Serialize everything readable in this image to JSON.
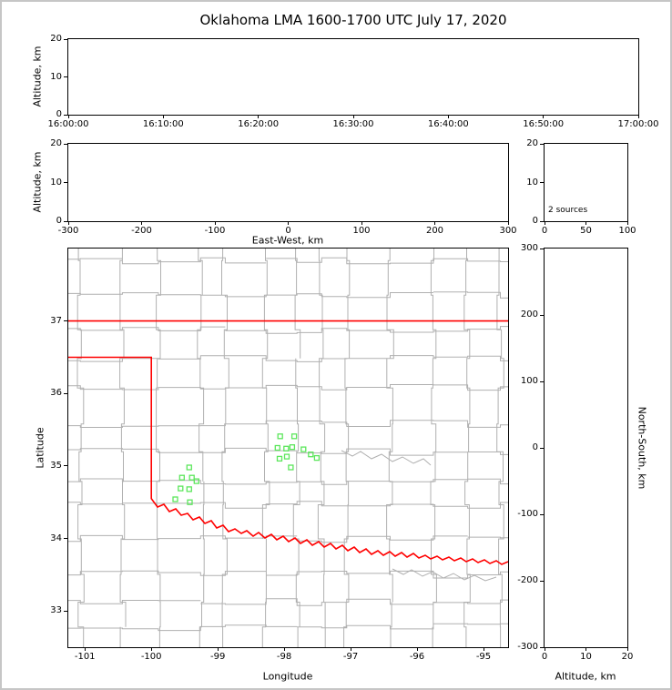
{
  "figure": {
    "title": "Oklahoma LMA 1600-1700 UTC July 17, 2020",
    "colors": {
      "state_border": "#ff0000",
      "county_lines": "#b0b0b0",
      "stations": "#5ce65c",
      "axes": "#000000",
      "frame": "#c6c6c6",
      "background": "#ffffff"
    }
  },
  "chart_data": [
    {
      "id": "time_height",
      "type": "scatter",
      "xlabel": "",
      "ylabel": "Altitude, km",
      "xlim": [
        0,
        60
      ],
      "ylim": [
        0,
        20
      ],
      "xticks": [
        {
          "v": 0,
          "label": "16:00:00"
        },
        {
          "v": 10,
          "label": "16:10:00"
        },
        {
          "v": 20,
          "label": "16:20:00"
        },
        {
          "v": 30,
          "label": "16:30:00"
        },
        {
          "v": 40,
          "label": "16:40:00"
        },
        {
          "v": 50,
          "label": "16:50:00"
        },
        {
          "v": 60,
          "label": "17:00:00"
        }
      ],
      "yticks": [
        {
          "v": 0,
          "label": "0"
        },
        {
          "v": 10,
          "label": "10"
        },
        {
          "v": 20,
          "label": "20"
        }
      ],
      "points": []
    },
    {
      "id": "ew_height",
      "type": "scatter",
      "xlabel": "East-West, km",
      "ylabel": "Altitude, km",
      "xlim": [
        -300,
        300
      ],
      "ylim": [
        0,
        20
      ],
      "xticks": [
        {
          "v": -300,
          "label": "-300"
        },
        {
          "v": -200,
          "label": "-200"
        },
        {
          "v": -100,
          "label": "-100"
        },
        {
          "v": 0,
          "label": "0"
        },
        {
          "v": 100,
          "label": "100"
        },
        {
          "v": 200,
          "label": "200"
        },
        {
          "v": 300,
          "label": "300"
        }
      ],
      "yticks": [
        {
          "v": 0,
          "label": "0"
        },
        {
          "v": 10,
          "label": "10"
        },
        {
          "v": 20,
          "label": "20"
        }
      ],
      "points": []
    },
    {
      "id": "alt_hist",
      "type": "line",
      "xlabel": "",
      "ylabel": "",
      "annotation": "2 sources",
      "xlim": [
        0,
        100
      ],
      "ylim": [
        0,
        20
      ],
      "xticks": [
        {
          "v": 0,
          "label": "0"
        },
        {
          "v": 50,
          "label": "50"
        },
        {
          "v": 100,
          "label": "100"
        }
      ],
      "yticks": [
        {
          "v": 0,
          "label": "0"
        },
        {
          "v": 10,
          "label": "10"
        },
        {
          "v": 20,
          "label": "20"
        }
      ],
      "points": []
    },
    {
      "id": "plan_view",
      "type": "scatter",
      "xlabel": "Longitude",
      "ylabel": "Latitude",
      "xlim": [
        -101.25,
        -94.63
      ],
      "ylim": [
        32.5,
        38.0
      ],
      "xticks": [
        {
          "v": -101,
          "label": "-101"
        },
        {
          "v": -100,
          "label": "-100"
        },
        {
          "v": -99,
          "label": "-99"
        },
        {
          "v": -98,
          "label": "-98"
        },
        {
          "v": -97,
          "label": "-97"
        },
        {
          "v": -96,
          "label": "-96"
        },
        {
          "v": -95,
          "label": "-95"
        }
      ],
      "yticks": [
        {
          "v": 37,
          "label": "37"
        },
        {
          "v": 36,
          "label": "36"
        },
        {
          "v": 35,
          "label": "35"
        },
        {
          "v": 34,
          "label": "34"
        },
        {
          "v": 33,
          "label": "33"
        }
      ],
      "points": [],
      "stations": [
        {
          "lon": -98.06,
          "lat": 35.41
        },
        {
          "lon": -97.85,
          "lat": 35.41
        },
        {
          "lon": -98.1,
          "lat": 35.25
        },
        {
          "lon": -97.97,
          "lat": 35.24
        },
        {
          "lon": -97.88,
          "lat": 35.26
        },
        {
          "lon": -98.07,
          "lat": 35.1
        },
        {
          "lon": -97.96,
          "lat": 35.13
        },
        {
          "lon": -97.71,
          "lat": 35.23
        },
        {
          "lon": -97.6,
          "lat": 35.16
        },
        {
          "lon": -97.51,
          "lat": 35.11
        },
        {
          "lon": -97.9,
          "lat": 34.98
        },
        {
          "lon": -99.43,
          "lat": 34.98
        },
        {
          "lon": -99.54,
          "lat": 34.84
        },
        {
          "lon": -99.39,
          "lat": 34.84
        },
        {
          "lon": -99.32,
          "lat": 34.79
        },
        {
          "lon": -99.56,
          "lat": 34.69
        },
        {
          "lon": -99.43,
          "lat": 34.68
        },
        {
          "lon": -99.64,
          "lat": 34.54
        },
        {
          "lon": -99.42,
          "lat": 34.5
        }
      ]
    },
    {
      "id": "ns_height",
      "type": "scatter",
      "xlabel": "Altitude, km",
      "ylabel_right": "North-South, km",
      "xlim": [
        0,
        20
      ],
      "ylim": [
        -300,
        300
      ],
      "xticks": [
        {
          "v": 0,
          "label": "0"
        },
        {
          "v": 10,
          "label": "10"
        },
        {
          "v": 20,
          "label": "20"
        }
      ],
      "yticks": [
        {
          "v": 300,
          "label": "300"
        },
        {
          "v": 200,
          "label": "200"
        },
        {
          "v": 100,
          "label": "100"
        },
        {
          "v": 0,
          "label": "0"
        },
        {
          "v": -100,
          "label": "-100"
        },
        {
          "v": -200,
          "label": "-200"
        },
        {
          "v": -300,
          "label": "-300"
        }
      ],
      "points": []
    }
  ]
}
